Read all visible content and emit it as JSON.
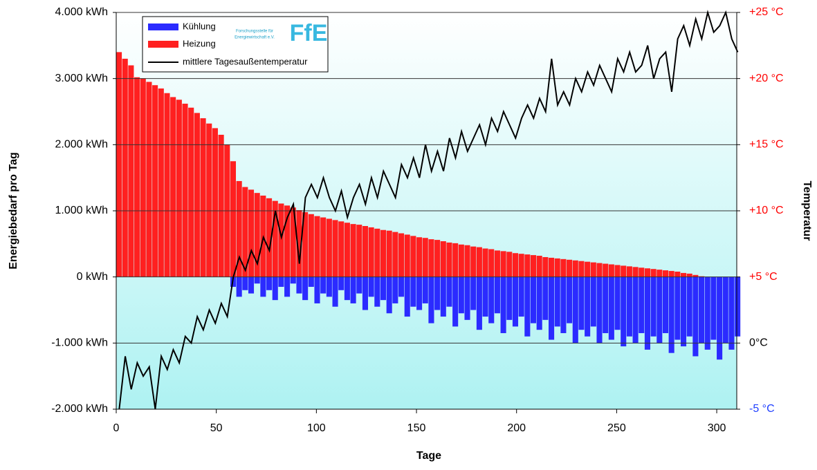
{
  "chart_data": {
    "type": "bar_line",
    "xlabel": "Tage",
    "ylabel": "Energiebedarf pro Tag",
    "y2label": "Temperatur",
    "logo": {
      "mark": "FfE",
      "line1": "Forschungsstelle für",
      "line2": "Energiewirtschaft e.V."
    },
    "xlim": [
      0,
      310
    ],
    "xticks": [
      0,
      50,
      100,
      150,
      200,
      250,
      300
    ],
    "ylim": [
      -2000,
      4000
    ],
    "yticks": [
      {
        "value": -2000,
        "label": "-2.000 kWh"
      },
      {
        "value": -1000,
        "label": "-1.000 kWh"
      },
      {
        "value": 0,
        "label": "0 kWh"
      },
      {
        "value": 1000,
        "label": "1.000 kWh"
      },
      {
        "value": 2000,
        "label": "2.000 kWh"
      },
      {
        "value": 3000,
        "label": "3.000 kWh"
      },
      {
        "value": 4000,
        "label": "4.000 kWh"
      }
    ],
    "y2lim": [
      -5,
      25
    ],
    "y2ticks": [
      {
        "value": -5,
        "label": "-5 °C"
      },
      {
        "value": 0,
        "label": "0°C"
      },
      {
        "value": 5,
        "label": "+5 °C"
      },
      {
        "value": 10,
        "label": "+10 °C"
      },
      {
        "value": 15,
        "label": "+15 °C"
      },
      {
        "value": 20,
        "label": "+20 °C"
      },
      {
        "value": 25,
        "label": "+25 °C"
      }
    ],
    "y2tick_colors": [
      "#1f3fff",
      "#000000",
      "#ff0000",
      "#ff0000",
      "#ff0000",
      "#ff0000",
      "#ff0000"
    ],
    "grid": true,
    "x": [
      0,
      3,
      6,
      9,
      12,
      15,
      18,
      21,
      24,
      27,
      30,
      33,
      36,
      39,
      42,
      45,
      48,
      51,
      54,
      57,
      60,
      63,
      66,
      69,
      72,
      75,
      78,
      81,
      84,
      87,
      90,
      93,
      96,
      99,
      102,
      105,
      108,
      111,
      114,
      117,
      120,
      123,
      126,
      129,
      132,
      135,
      138,
      141,
      144,
      147,
      150,
      153,
      156,
      159,
      162,
      165,
      168,
      171,
      174,
      177,
      180,
      183,
      186,
      189,
      192,
      195,
      198,
      201,
      204,
      207,
      210,
      213,
      216,
      219,
      222,
      225,
      228,
      231,
      234,
      237,
      240,
      243,
      246,
      249,
      252,
      255,
      258,
      261,
      264,
      267,
      270,
      273,
      276,
      279,
      282,
      285,
      288,
      291,
      294,
      297,
      300,
      303,
      306,
      309
    ],
    "series": [
      {
        "name": "Kühlung",
        "color": "#2b2bff",
        "values": [
          0,
          0,
          0,
          0,
          0,
          0,
          0,
          0,
          0,
          0,
          0,
          0,
          0,
          0,
          0,
          0,
          0,
          0,
          0,
          -150,
          -300,
          -200,
          -250,
          -100,
          -300,
          -200,
          -350,
          -150,
          -300,
          -100,
          -250,
          -350,
          -150,
          -400,
          -250,
          -300,
          -450,
          -200,
          -350,
          -400,
          -250,
          -500,
          -300,
          -450,
          -350,
          -550,
          -400,
          -300,
          -600,
          -450,
          -500,
          -400,
          -700,
          -500,
          -600,
          -450,
          -750,
          -550,
          -650,
          -500,
          -800,
          -600,
          -700,
          -550,
          -850,
          -650,
          -750,
          -600,
          -900,
          -700,
          -800,
          -650,
          -950,
          -750,
          -850,
          -700,
          -1000,
          -800,
          -900,
          -750,
          -1000,
          -850,
          -950,
          -800,
          -1050,
          -900,
          -1000,
          -850,
          -1100,
          -900,
          -1000,
          -850,
          -1150,
          -950,
          -1050,
          -900,
          -1200,
          -1000,
          -1100,
          -950,
          -1250,
          -1000,
          -1100,
          -900
        ]
      },
      {
        "name": "Heizung",
        "color": "#ff2020",
        "values": [
          3400,
          3300,
          3200,
          3020,
          3000,
          2950,
          2900,
          2850,
          2780,
          2720,
          2680,
          2620,
          2560,
          2480,
          2400,
          2320,
          2250,
          2150,
          2000,
          1750,
          1450,
          1360,
          1320,
          1270,
          1230,
          1190,
          1150,
          1110,
          1080,
          1050,
          1010,
          980,
          950,
          920,
          900,
          880,
          860,
          840,
          820,
          800,
          790,
          770,
          750,
          730,
          710,
          700,
          680,
          660,
          640,
          620,
          600,
          590,
          570,
          560,
          540,
          520,
          510,
          490,
          480,
          460,
          450,
          430,
          420,
          400,
          390,
          380,
          360,
          350,
          340,
          330,
          320,
          300,
          290,
          280,
          270,
          260,
          250,
          240,
          230,
          220,
          210,
          200,
          190,
          180,
          170,
          160,
          150,
          140,
          130,
          120,
          110,
          100,
          90,
          80,
          60,
          50,
          30,
          10,
          0,
          0,
          0,
          0,
          0,
          0
        ]
      },
      {
        "name": "mittlere Tagesaußentemperatur",
        "color": "#000000",
        "axis": "y2",
        "values": [
          -5,
          -1,
          -3.5,
          -1.5,
          -2.5,
          -1.8,
          -5,
          -1,
          -2,
          -0.5,
          -1.5,
          0.5,
          0,
          2,
          1,
          2.5,
          1.5,
          3,
          2,
          5,
          6.5,
          5.5,
          7,
          6,
          8,
          7,
          10,
          8,
          9.5,
          10.5,
          6,
          11,
          12,
          11,
          12.5,
          11,
          10,
          11.5,
          9.5,
          11,
          12,
          10.5,
          12.5,
          11,
          13,
          12,
          11,
          13.5,
          12.5,
          14,
          12.5,
          15,
          13,
          14.5,
          13,
          15.5,
          14,
          16,
          14.5,
          15.5,
          16.5,
          15,
          17,
          16,
          17.5,
          16.5,
          15.5,
          17,
          18,
          17,
          18.5,
          17.5,
          21.5,
          18,
          19,
          18,
          20,
          19,
          20.5,
          19.5,
          21,
          20,
          19,
          21.5,
          20.5,
          22,
          20.5,
          21,
          22.5,
          20,
          21.5,
          22,
          19,
          23,
          24,
          22.5,
          24.5,
          23,
          25,
          23.5,
          24,
          25,
          23,
          22
        ]
      }
    ]
  }
}
